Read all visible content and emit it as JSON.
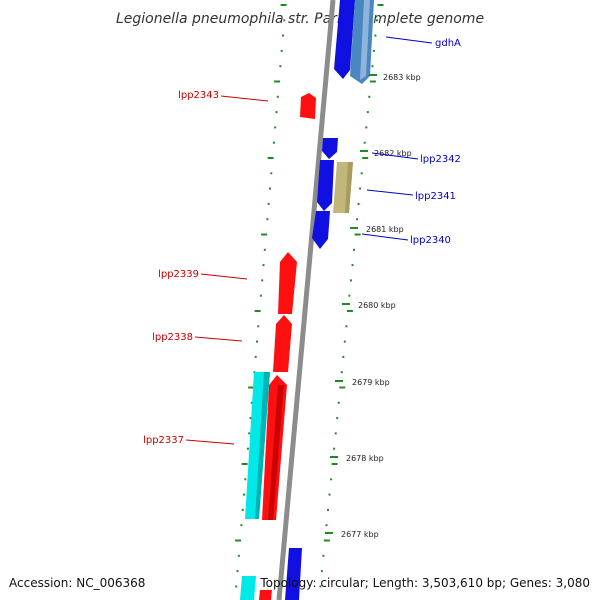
{
  "title": "Legionella pneumophila str. Paris, complete genome",
  "footer": {
    "accession": "Accession: NC_006368",
    "topology": "Topology: circular; Length: 3,503,610 bp; Genes: 3,080"
  },
  "colors": {
    "backbone": "#8c8c8c",
    "tick": "#1e8c1e",
    "forward_label": "#0000cc",
    "reverse_label": "#cc0000",
    "gene_blue": "#1010e0",
    "gene_steel": "#4a86c0",
    "gene_red": "#ff1010",
    "gene_cyan": "#00e8e8",
    "gene_khaki": "#c2b77a"
  },
  "scale_labels": [
    "2683 kbp",
    "2682 kbp",
    "2681 kbp",
    "2680 kbp",
    "2679 kbp",
    "2678 kbp",
    "2677 kbp"
  ],
  "gene_labels": [
    {
      "text": "gdhA",
      "strand": "forward"
    },
    {
      "text": "lpp2343",
      "strand": "reverse"
    },
    {
      "text": "lpp2342",
      "strand": "forward"
    },
    {
      "text": "lpp2341",
      "strand": "forward"
    },
    {
      "text": "lpp2340",
      "strand": "forward"
    },
    {
      "text": "lpp2339",
      "strand": "reverse"
    },
    {
      "text": "lpp2338",
      "strand": "reverse"
    },
    {
      "text": "lpp2337",
      "strand": "reverse"
    }
  ]
}
